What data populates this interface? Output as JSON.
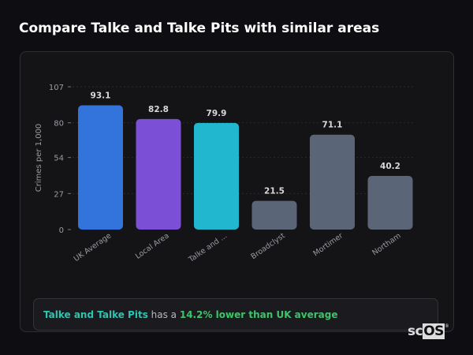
{
  "title": "Compare Talke and Talke Pits with similar areas",
  "chart_data": {
    "type": "bar",
    "categories": [
      "UK Average",
      "Local Area",
      "Talke and ...",
      "Broadclyst",
      "Mortimer",
      "Northam"
    ],
    "values": [
      93.1,
      82.8,
      79.9,
      21.5,
      71.1,
      40.2
    ],
    "value_labels": [
      "93.1",
      "82.8",
      "79.9",
      "21.5",
      "71.1",
      "40.2"
    ],
    "colors": [
      "#3273dc",
      "#7b4fd6",
      "#21b8cf",
      "#5a6577",
      "#5a6577",
      "#5a6577"
    ],
    "ylabel": "Crimes per 1,000",
    "xlabel": "",
    "yticks": [
      0,
      27,
      54,
      80,
      107
    ],
    "ylim": [
      0,
      107
    ],
    "grid": true,
    "legend": "none"
  },
  "summary": {
    "area": "Talke and Talke Pits",
    "middle": " has a ",
    "comparison": "14.2% lower than UK average"
  },
  "logo": {
    "prefix": "sc",
    "boxed": "OS",
    "mark": "®"
  }
}
